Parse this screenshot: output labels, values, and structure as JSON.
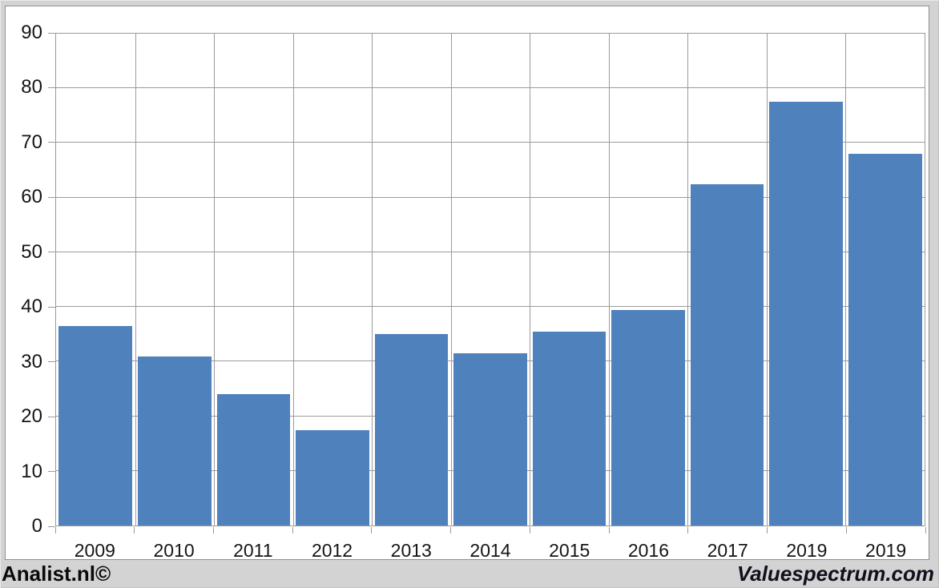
{
  "chart_data": {
    "type": "bar",
    "categories": [
      "2009",
      "2010",
      "2011",
      "2012",
      "2013",
      "2014",
      "2015",
      "2016",
      "2017",
      "2019",
      "2019"
    ],
    "values": [
      36.5,
      31,
      24,
      17.5,
      35,
      31.5,
      35.5,
      39.5,
      62.5,
      77.5,
      68
    ],
    "title": "",
    "xlabel": "",
    "ylabel": "",
    "ylim": [
      0,
      90
    ],
    "y_ticks": [
      0,
      10,
      20,
      30,
      40,
      50,
      60,
      70,
      80,
      90
    ],
    "grid": true,
    "legend": "none",
    "bar_color": "#4f81bd",
    "gridline_color": "#9b9b9b",
    "plot_border_color": "#9a9a9a",
    "axis_text_color": "#151515"
  },
  "footer": {
    "left": "Analist.nl©",
    "right": "Valuespectrum.com"
  }
}
